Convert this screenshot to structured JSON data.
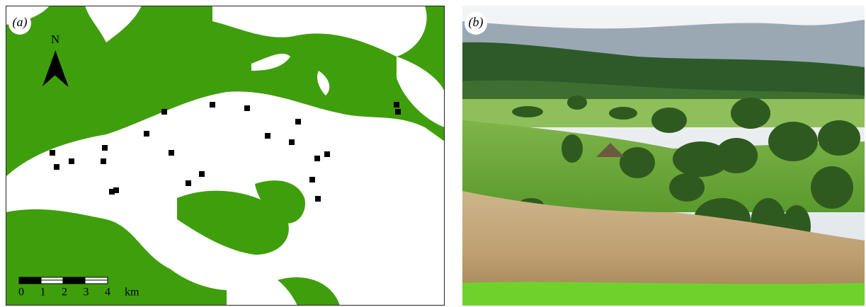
{
  "panels": [
    {
      "label": "(a)",
      "north": "N",
      "scale_labels": [
        "0",
        "1",
        "2",
        "3",
        "4"
      ],
      "scale_unit": "km"
    },
    {
      "label": "(b)"
    }
  ]
}
